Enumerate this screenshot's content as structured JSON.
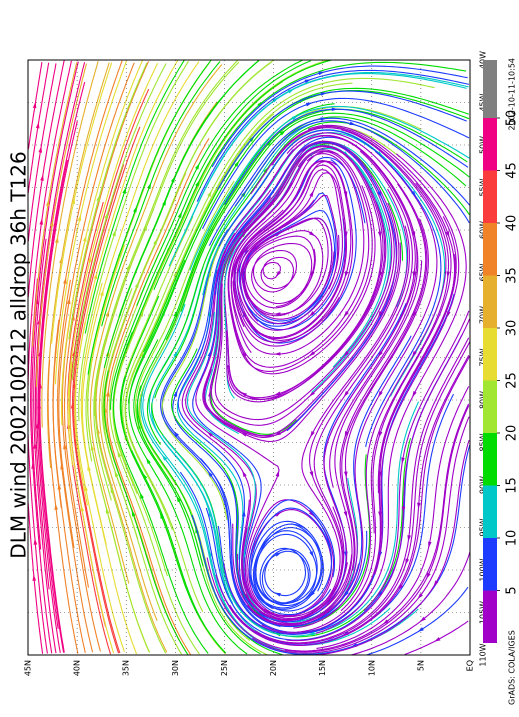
{
  "title": "DLM wind 2002100212 alldrop 36h T126",
  "timestamp": "2002-10-11-10:54",
  "credit": "GrADS: COLA/IGES",
  "latitude_labels": [
    "45N",
    "40N",
    "35N",
    "30N",
    "25N",
    "20N",
    "15N",
    "10N",
    "5N",
    "EQ"
  ],
  "longitude_labels": [
    "40W",
    "45W",
    "50W",
    "55W",
    "60W",
    "65W",
    "70W",
    "75W",
    "80W",
    "85W",
    "90W",
    "95W",
    "100W",
    "105W",
    "110W"
  ],
  "colorbar": {
    "ticks": [
      5,
      10,
      15,
      20,
      25,
      30,
      35,
      40,
      45,
      50
    ],
    "colors": [
      "#a000c8",
      "#1e3cff",
      "#00c8c8",
      "#00dc00",
      "#a0e632",
      "#e6dc32",
      "#e6af2d",
      "#f08228",
      "#fa3c3c",
      "#f00082",
      "#808080"
    ]
  }
}
